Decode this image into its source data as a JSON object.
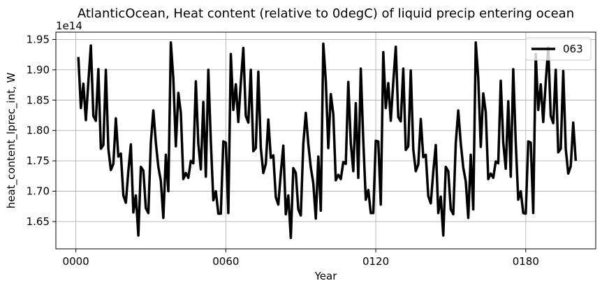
{
  "chart_data": {
    "type": "line",
    "title": "AtlanticOcean, Heat content (relative to 0degC) of liquid precip entering ocean",
    "xlabel": "Year",
    "ylabel": "heat_content_lprec_int, W",
    "y_offset_label": "1e14",
    "xlim": [
      -8,
      208
    ],
    "ylim": [
      1.605,
      1.962
    ],
    "x_ticks": [
      0,
      60,
      120,
      180
    ],
    "x_tick_labels": [
      "0000",
      "0060",
      "0120",
      "0180"
    ],
    "y_ticks": [
      1.65,
      1.7,
      1.75,
      1.8,
      1.85,
      1.9,
      1.95
    ],
    "y_tick_labels": [
      "1.65",
      "1.70",
      "1.75",
      "1.80",
      "1.85",
      "1.90",
      "1.95"
    ],
    "grid": true,
    "legend_position": "top-right",
    "line_color": "#000000",
    "series": [
      {
        "name": "063",
        "x": [
          1,
          2,
          3,
          4,
          5,
          6,
          7,
          8,
          9,
          10,
          11,
          12,
          13,
          14,
          15,
          16,
          17,
          18,
          19,
          20,
          21,
          22,
          23,
          24,
          25,
          26,
          27,
          28,
          29,
          30,
          31,
          32,
          33,
          34,
          35,
          36,
          37,
          38,
          39,
          40,
          41,
          42,
          43,
          44,
          45,
          46,
          47,
          48,
          49,
          50,
          51,
          52,
          53,
          54,
          55,
          56,
          57,
          58,
          59,
          60,
          61,
          62,
          63,
          64,
          65,
          66,
          67,
          68,
          69,
          70,
          71,
          72,
          73,
          74,
          75,
          76,
          77,
          78,
          79,
          80,
          81,
          82,
          83,
          84,
          85,
          86,
          87,
          88,
          89,
          90,
          91,
          92,
          93,
          94,
          95,
          96,
          97,
          98,
          99,
          100,
          101,
          102,
          103,
          104,
          105,
          106,
          107,
          108,
          109,
          110,
          111,
          112,
          113,
          114,
          115,
          116,
          117,
          118,
          119,
          120,
          121,
          122,
          123,
          124,
          125,
          126,
          127,
          128,
          129,
          130,
          131,
          132,
          133,
          134,
          135,
          136,
          137,
          138,
          139,
          140,
          141,
          142,
          143,
          144,
          145,
          146,
          147,
          148,
          149,
          150,
          151,
          152,
          153,
          154,
          155,
          156,
          157,
          158,
          159,
          160,
          161,
          162,
          163,
          164,
          165,
          166,
          167,
          168,
          169,
          170,
          171,
          172,
          173,
          174,
          175,
          176,
          177,
          178,
          179,
          180,
          181,
          182,
          183,
          184,
          185,
          186,
          187,
          188,
          189,
          190,
          191,
          192,
          193,
          194,
          195,
          196,
          197,
          198,
          199,
          200
        ],
        "values": [
          1.921,
          1.837,
          1.877,
          1.817,
          1.88,
          1.94,
          1.824,
          1.816,
          1.901,
          1.77,
          1.776,
          1.9,
          1.77,
          1.735,
          1.745,
          1.82,
          1.757,
          1.762,
          1.693,
          1.681,
          1.733,
          1.777,
          1.665,
          1.693,
          1.627,
          1.74,
          1.734,
          1.672,
          1.664,
          1.78,
          1.833,
          1.78,
          1.74,
          1.717,
          1.656,
          1.76,
          1.7,
          1.945,
          1.885,
          1.774,
          1.862,
          1.829,
          1.72,
          1.73,
          1.722,
          1.75,
          1.746,
          1.881,
          1.778,
          1.736,
          1.847,
          1.724,
          1.9,
          1.782,
          1.685,
          1.7,
          1.663,
          1.663,
          1.782,
          1.78,
          1.664,
          1.926,
          1.834,
          1.876,
          1.814,
          1.879,
          1.936,
          1.824,
          1.813,
          1.9,
          1.766,
          1.771,
          1.897,
          1.771,
          1.73,
          1.745,
          1.818,
          1.755,
          1.759,
          1.69,
          1.678,
          1.73,
          1.775,
          1.662,
          1.693,
          1.623,
          1.738,
          1.73,
          1.67,
          1.66,
          1.778,
          1.829,
          1.778,
          1.739,
          1.713,
          1.655,
          1.757,
          1.668,
          1.943,
          1.882,
          1.771,
          1.86,
          1.827,
          1.718,
          1.727,
          1.72,
          1.748,
          1.745,
          1.88,
          1.779,
          1.733,
          1.845,
          1.722,
          1.902,
          1.783,
          1.686,
          1.702,
          1.664,
          1.664,
          1.783,
          1.782,
          1.678,
          1.929,
          1.837,
          1.878,
          1.816,
          1.88,
          1.938,
          1.822,
          1.815,
          1.902,
          1.768,
          1.774,
          1.899,
          1.769,
          1.733,
          1.744,
          1.819,
          1.756,
          1.76,
          1.692,
          1.68,
          1.732,
          1.776,
          1.664,
          1.691,
          1.627,
          1.74,
          1.733,
          1.67,
          1.662,
          1.779,
          1.833,
          1.779,
          1.739,
          1.716,
          1.656,
          1.76,
          1.67,
          1.945,
          1.886,
          1.773,
          1.861,
          1.83,
          1.72,
          1.729,
          1.722,
          1.749,
          1.746,
          1.882,
          1.78,
          1.737,
          1.848,
          1.724,
          1.901,
          1.78,
          1.686,
          1.7,
          1.664,
          1.663,
          1.782,
          1.78,
          1.664,
          1.926,
          1.834,
          1.876,
          1.814,
          1.88,
          1.937,
          1.824,
          1.812,
          1.9,
          1.764,
          1.77,
          1.898,
          1.77,
          1.729,
          1.741,
          1.813,
          1.75
        ]
      }
    ]
  }
}
